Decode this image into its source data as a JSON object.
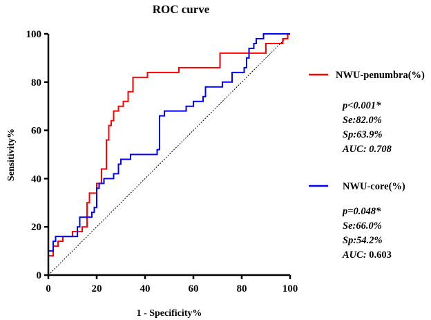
{
  "chart_data": {
    "type": "line",
    "title": "ROC curve",
    "xlabel": "1 - Specificity%",
    "ylabel": "Sensitivity%",
    "xlim": [
      0,
      100
    ],
    "ylim": [
      0,
      100
    ],
    "xticks": [
      "0",
      "20",
      "40",
      "60",
      "80",
      "100"
    ],
    "yticks": [
      "0",
      "20",
      "40",
      "60",
      "80",
      "100"
    ],
    "grid": false,
    "legend_position": "right",
    "reference_line": {
      "name": "random-chance diagonal",
      "style": "dotted",
      "x": [
        0,
        100
      ],
      "y": [
        0,
        100
      ]
    },
    "series": [
      {
        "name": "NWU-penumbra(%)",
        "color": "#ff0000",
        "stats": {
          "p": "p<0.001*",
          "se": "Se:82.0%",
          "sp": "Sp:63.9%",
          "auc_label": "AUC: ",
          "auc_value": "0.708"
        },
        "points": [
          [
            0,
            0
          ],
          [
            0,
            8
          ],
          [
            2,
            8
          ],
          [
            2,
            12
          ],
          [
            4,
            12
          ],
          [
            4,
            14
          ],
          [
            6,
            14
          ],
          [
            6,
            16
          ],
          [
            10,
            16
          ],
          [
            10,
            18
          ],
          [
            14,
            18
          ],
          [
            14,
            20
          ],
          [
            16,
            20
          ],
          [
            16,
            30
          ],
          [
            17,
            30
          ],
          [
            17,
            34
          ],
          [
            20,
            34
          ],
          [
            20,
            38
          ],
          [
            22,
            38
          ],
          [
            22,
            44
          ],
          [
            24,
            44
          ],
          [
            24,
            56
          ],
          [
            25,
            56
          ],
          [
            25,
            62
          ],
          [
            26,
            62
          ],
          [
            26,
            64
          ],
          [
            27,
            64
          ],
          [
            27,
            68
          ],
          [
            29,
            68
          ],
          [
            29,
            70
          ],
          [
            31,
            70
          ],
          [
            31,
            72
          ],
          [
            33,
            72
          ],
          [
            33,
            76
          ],
          [
            35,
            76
          ],
          [
            35,
            82
          ],
          [
            41,
            82
          ],
          [
            41,
            84
          ],
          [
            54,
            84
          ],
          [
            54,
            86
          ],
          [
            71,
            86
          ],
          [
            71,
            92
          ],
          [
            90,
            92
          ],
          [
            90,
            96
          ],
          [
            97,
            96
          ],
          [
            97,
            98
          ],
          [
            99,
            98
          ],
          [
            99,
            100
          ],
          [
            100,
            100
          ]
        ]
      },
      {
        "name": "NWU-core(%)",
        "color": "#0000ff",
        "stats": {
          "p": "p=0.048*",
          "se": "Se:66.0%",
          "sp": "Sp:54.2%",
          "auc_label": "AUC: ",
          "auc_value": "0.603"
        },
        "points": [
          [
            0,
            0
          ],
          [
            0,
            10
          ],
          [
            2,
            10
          ],
          [
            2,
            14
          ],
          [
            3,
            14
          ],
          [
            3,
            16
          ],
          [
            12,
            16
          ],
          [
            12,
            20
          ],
          [
            13,
            20
          ],
          [
            13,
            24
          ],
          [
            18,
            24
          ],
          [
            18,
            26
          ],
          [
            19,
            26
          ],
          [
            19,
            28
          ],
          [
            20,
            28
          ],
          [
            20,
            36
          ],
          [
            21,
            36
          ],
          [
            21,
            38
          ],
          [
            23,
            38
          ],
          [
            23,
            40
          ],
          [
            27,
            40
          ],
          [
            27,
            42
          ],
          [
            29,
            42
          ],
          [
            29,
            46
          ],
          [
            30,
            46
          ],
          [
            30,
            48
          ],
          [
            34,
            48
          ],
          [
            34,
            50
          ],
          [
            45,
            50
          ],
          [
            45,
            52
          ],
          [
            46,
            52
          ],
          [
            46,
            66
          ],
          [
            48,
            66
          ],
          [
            48,
            68
          ],
          [
            57,
            68
          ],
          [
            57,
            70
          ],
          [
            60,
            70
          ],
          [
            60,
            72
          ],
          [
            64,
            72
          ],
          [
            64,
            74
          ],
          [
            65,
            74
          ],
          [
            65,
            78
          ],
          [
            72,
            78
          ],
          [
            72,
            80
          ],
          [
            76,
            80
          ],
          [
            76,
            84
          ],
          [
            81,
            84
          ],
          [
            81,
            86
          ],
          [
            82,
            86
          ],
          [
            82,
            90
          ],
          [
            83,
            90
          ],
          [
            83,
            94
          ],
          [
            85,
            94
          ],
          [
            85,
            96
          ],
          [
            86,
            96
          ],
          [
            86,
            98
          ],
          [
            89,
            98
          ],
          [
            89,
            100
          ],
          [
            100,
            100
          ]
        ]
      }
    ]
  }
}
